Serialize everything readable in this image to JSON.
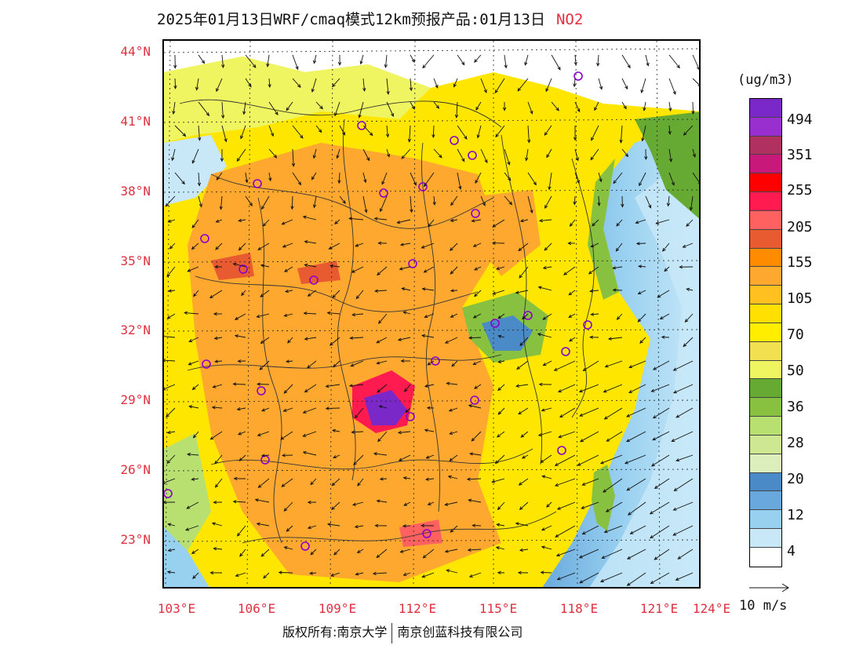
{
  "header": {
    "title": "2025年01月13日WRF/cmaq模式12km预报产品:01月13日",
    "species": "NO2"
  },
  "map": {
    "lat_labels": [
      "44°N",
      "41°N",
      "38°N",
      "35°N",
      "32°N",
      "29°N",
      "26°N",
      "23°N"
    ],
    "lon_labels": [
      "103°E",
      "106°E",
      "109°E",
      "112°E",
      "115°E",
      "118°E",
      "121°E",
      "124°E"
    ],
    "field": "NO2 concentration",
    "overlays": [
      "wind-vectors",
      "province-boundaries",
      "city-markers"
    ]
  },
  "legend": {
    "unit": "(ug/m3)",
    "labels": [
      "494",
      "351",
      "255",
      "205",
      "155",
      "105",
      "70",
      "50",
      "36",
      "28",
      "20",
      "12",
      "4"
    ],
    "colors": [
      "#7b28c8",
      "#9a2fd0",
      "#b03060",
      "#c8187a",
      "#ff0000",
      "#ff1a50",
      "#ff6060",
      "#e85a30",
      "#ff8c00",
      "#ffa830",
      "#ffc020",
      "#ffe000",
      "#ffee00",
      "#f2e050",
      "#eef560",
      "#66aa33",
      "#88c040",
      "#b8e070",
      "#cde890",
      "#dceebc",
      "#4a8ac6",
      "#68a8dc",
      "#98d0f0",
      "#c8e8f8",
      "#ffffff"
    ]
  },
  "wind_ref": {
    "label": "10 m/s"
  },
  "footer": {
    "copyright": "版权所有:南京大学",
    "company": "南京创蓝科技有限公司"
  }
}
